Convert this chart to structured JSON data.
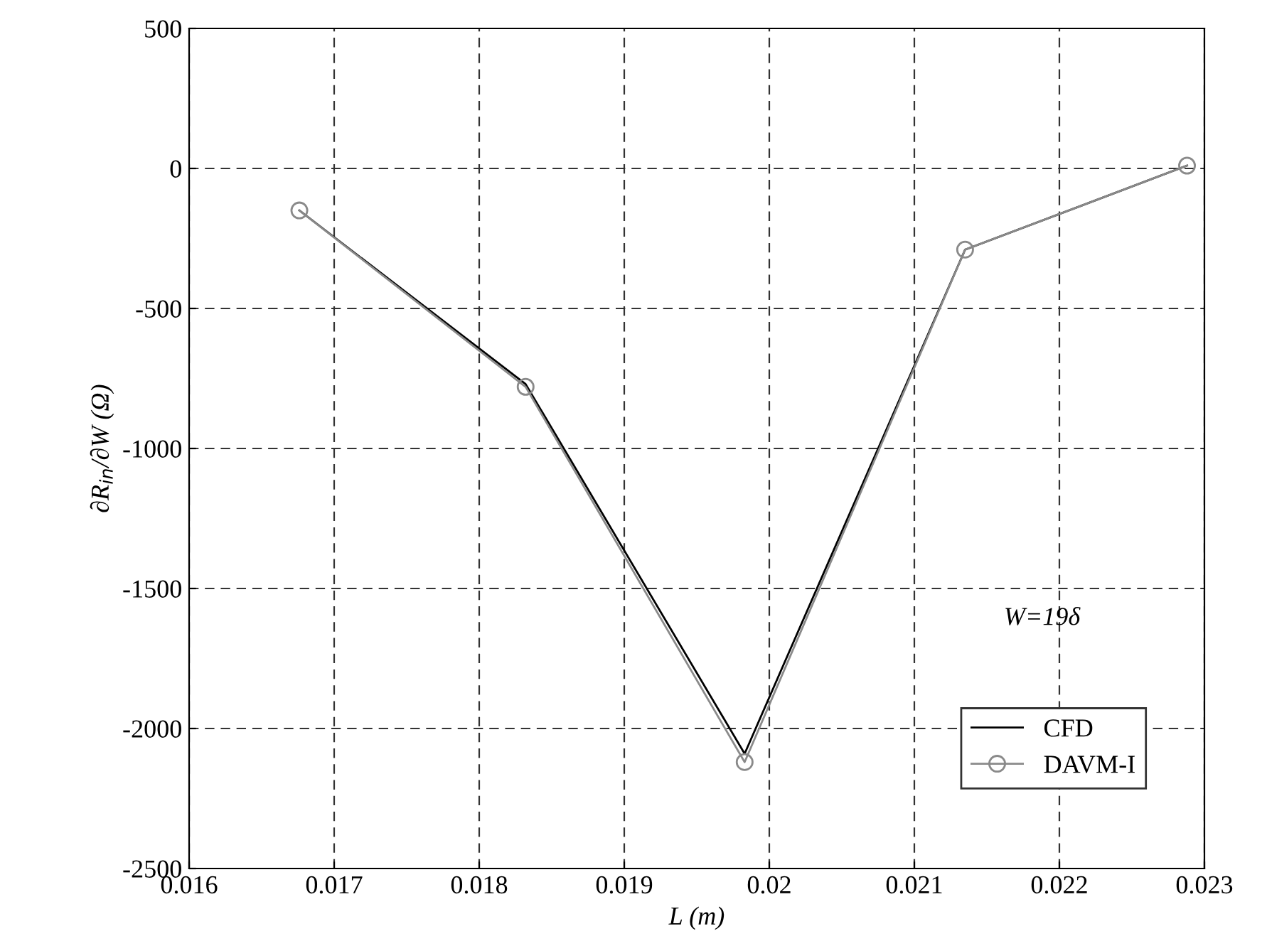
{
  "chart_data": {
    "type": "line",
    "xlabel": "L (m)",
    "ylabel": "∂R$_{in}$/∂W (Ω)",
    "x": [
      0.01676,
      0.01832,
      0.01983,
      0.02135,
      0.02288
    ],
    "series": [
      {
        "name": "CFD",
        "color": "#000000",
        "values": [
          -150,
          -770,
          -2090,
          -290,
          10
        ],
        "marker": "none"
      },
      {
        "name": "DAVM-I",
        "color": "#8a8a8a",
        "values": [
          -150,
          -780,
          -2120,
          -290,
          10
        ],
        "marker": "circle"
      }
    ],
    "annotations": [
      "W=19δ"
    ],
    "xlim": [
      0.016,
      0.023
    ],
    "xticks": [
      0.016,
      0.017,
      0.018,
      0.019,
      0.02,
      0.021,
      0.022,
      0.023
    ],
    "ylim": [
      -2500,
      500
    ],
    "yticks": [
      -2500,
      -2000,
      -1500,
      -1000,
      -500,
      0,
      500
    ],
    "grid": true,
    "legend": "bottom right",
    "line_style": "solid"
  }
}
